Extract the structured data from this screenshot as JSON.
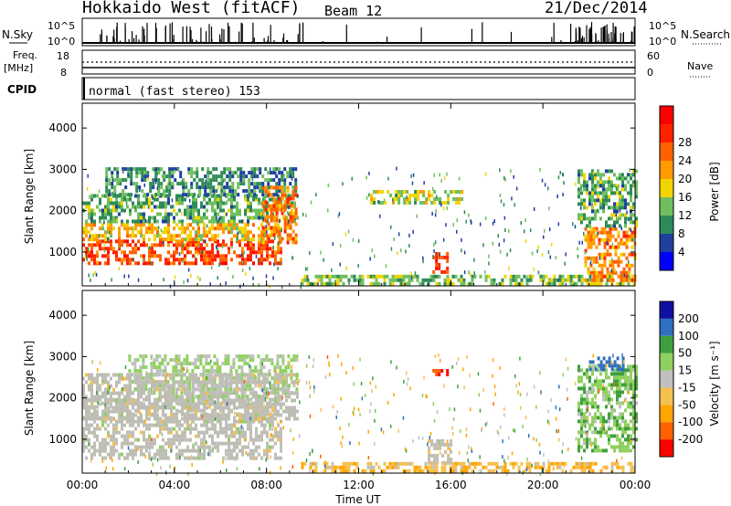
{
  "header": {
    "title": "Hokkaido West (fitACF)",
    "beam": "Beam 12",
    "date": "21/Dec/2014"
  },
  "top_panels": {
    "nsky_label": "N.Sky",
    "nsky_ticks": [
      "10^5",
      "10^0"
    ],
    "nsearch_label": "N.Search",
    "nsearch_ticks": [
      "10^5",
      "10^0"
    ],
    "freq_label": "Freq.",
    "freq_unit": "[MHz]",
    "freq_ticks": [
      "18",
      "8"
    ],
    "nave_label": "Nave",
    "nave_ticks": [
      "60",
      "0"
    ],
    "cpid_label": "CPID",
    "cpid_text": "normal (fast stereo) 153"
  },
  "colors": {
    "power_scale": [
      "#0000ff",
      "#1f3f9f",
      "#2e8b57",
      "#6fbf5f",
      "#f2d400",
      "#ff9a00",
      "#ff6000",
      "#ff2000",
      "#ff0000"
    ],
    "velocity_scale": [
      "#ff0000",
      "#ff6000",
      "#ffa500",
      "#f5c050",
      "#c0c0c0",
      "#8fd05f",
      "#3f9f3f",
      "#2e6fbf",
      "#1010a0"
    ],
    "ground_scatter": "#bebeb4"
  },
  "chart_data": [
    {
      "type": "heatmap",
      "name": "power",
      "xlabel": "",
      "ylabel": "Slant Range [km]",
      "ylim": [
        180,
        4600
      ],
      "yticks": [
        "1000",
        "2000",
        "3000",
        "4000"
      ],
      "xlim_hours": [
        0,
        24
      ],
      "colorbar_label": "Power [dB]",
      "colorbar_ticks": [
        "4",
        "8",
        "12",
        "16",
        "20",
        "24",
        "28"
      ],
      "colorbar_range": [
        0,
        32
      ],
      "regions": [
        {
          "t0": 0.0,
          "t1": 8.6,
          "r0": 700,
          "r1": 1300,
          "power": 28
        },
        {
          "t0": 0.0,
          "t1": 8.6,
          "r0": 1300,
          "r1": 1700,
          "power": 20
        },
        {
          "t0": 0.0,
          "t1": 9.3,
          "r0": 1700,
          "r1": 2400,
          "power": 12
        },
        {
          "t0": 1.0,
          "t1": 9.3,
          "r0": 2400,
          "r1": 3050,
          "power": 10
        },
        {
          "t0": 7.8,
          "t1": 9.3,
          "r0": 1200,
          "r1": 2600,
          "power": 24
        },
        {
          "t0": 15.2,
          "t1": 15.9,
          "r0": 550,
          "r1": 1000,
          "power": 28
        },
        {
          "t0": 9.5,
          "t1": 24.0,
          "r0": 200,
          "r1": 450,
          "power": 14
        },
        {
          "t0": 21.8,
          "t1": 24.0,
          "r0": 300,
          "r1": 1600,
          "power": 24
        },
        {
          "t0": 21.5,
          "t1": 24.0,
          "r0": 1600,
          "r1": 3000,
          "power": 12
        },
        {
          "t0": 12.5,
          "t1": 16.5,
          "r0": 2200,
          "r1": 2500,
          "power": 16
        }
      ]
    },
    {
      "type": "heatmap",
      "name": "velocity",
      "xlabel": "Time UT",
      "ylabel": "Slant Range [km]",
      "ylim": [
        180,
        4600
      ],
      "yticks": [
        "1000",
        "2000",
        "3000",
        "4000"
      ],
      "xlim_hours": [
        0,
        24
      ],
      "xticks": [
        "00:00",
        "04:00",
        "08:00",
        "12:00",
        "16:00",
        "20:00",
        "00:00"
      ],
      "colorbar_label": "Velocity [m s⁻¹]",
      "colorbar_ticks": [
        "-200",
        "-100",
        "-50",
        "-15",
        "15",
        "50",
        "100",
        "200"
      ],
      "regions": [
        {
          "t0": 0.0,
          "t1": 8.6,
          "r0": 500,
          "r1": 2000,
          "velocity": 0
        },
        {
          "t0": 2.0,
          "t1": 9.3,
          "r0": 2000,
          "r1": 3050,
          "velocity": 20
        },
        {
          "t0": 0.0,
          "t1": 9.3,
          "r0": 1500,
          "r1": 2600,
          "velocity": 0
        },
        {
          "t0": 15.0,
          "t1": 16.0,
          "r0": 400,
          "r1": 1000,
          "velocity": 0
        },
        {
          "t0": 9.5,
          "t1": 24.0,
          "r0": 200,
          "r1": 450,
          "velocity": -40
        },
        {
          "t0": 21.5,
          "t1": 24.0,
          "r0": 700,
          "r1": 2800,
          "velocity": 40
        },
        {
          "t0": 22.0,
          "t1": 23.5,
          "r0": 2700,
          "r1": 3000,
          "velocity": 150
        },
        {
          "t0": 15.2,
          "t1": 15.8,
          "r0": 2580,
          "r1": 2700,
          "velocity": -200
        }
      ]
    }
  ]
}
